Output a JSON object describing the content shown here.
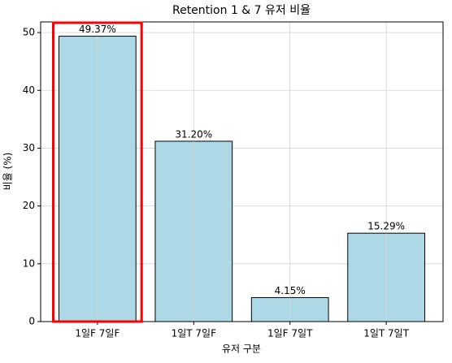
{
  "chart_data": {
    "type": "bar",
    "title": "Retention 1 & 7 유저 비율",
    "x_label": "유저 구분",
    "y_label": "비율 (%)",
    "categories": [
      "1일F 7일F",
      "1일T 7일F",
      "1일F 7일T",
      "1일T 7일T"
    ],
    "values": [
      49.37,
      31.2,
      4.15,
      15.29
    ],
    "value_labels": [
      "49.37%",
      "31.20%",
      "4.15%",
      "15.29%"
    ],
    "color": "#add8e6",
    "ylim": [
      0,
      51.84
    ],
    "yticks": [
      0,
      10,
      20,
      30,
      40,
      50
    ],
    "grid": true
  }
}
